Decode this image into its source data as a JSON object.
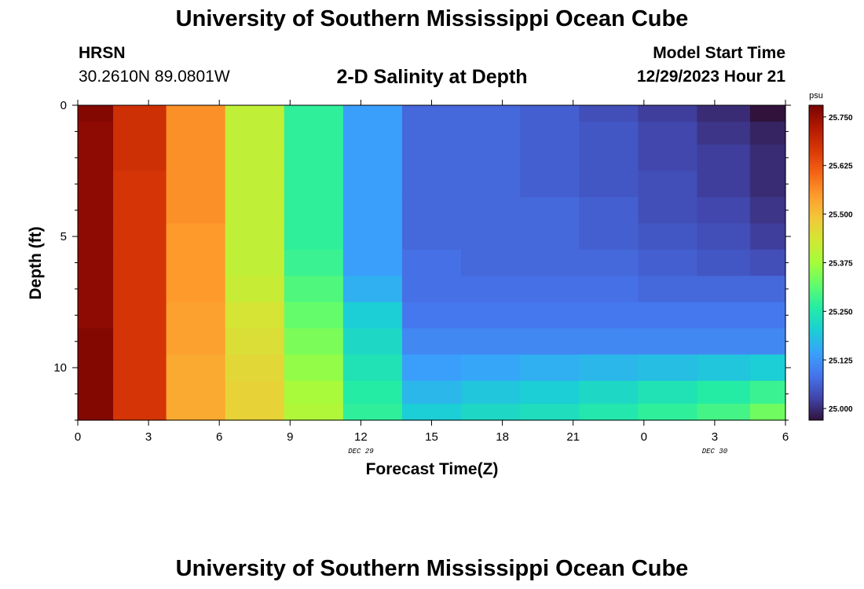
{
  "header": {
    "title": "University of Southern Mississippi Ocean Cube",
    "station": "HRSN",
    "coordinates": "30.2610N  89.0801W",
    "subtitle": "2-D Salinity at Depth",
    "model_start_label": "Model Start Time",
    "model_start_value": "12/29/2023 Hour 21"
  },
  "footer": {
    "title": "University of Southern Mississippi Ocean Cube"
  },
  "chart_data": {
    "type": "heatmap",
    "title": "2-D Salinity at Depth",
    "xlabel": "Forecast Time(Z)",
    "ylabel": "Depth (ft)",
    "x_ticks": [
      "0",
      "3",
      "6",
      "9",
      "12",
      "15",
      "18",
      "21",
      "0",
      "3",
      "6"
    ],
    "x_date_labels": [
      {
        "tick_index": 4,
        "text": "DEC 29"
      },
      {
        "tick_index": 9,
        "text": "DEC 30"
      }
    ],
    "y_ticks": [
      "0",
      "5",
      "10"
    ],
    "ylim": [
      12,
      0
    ],
    "xlim_hours": [
      0,
      30
    ],
    "colorbar": {
      "unit": "psu",
      "ticks": [
        "25.750",
        "25.625",
        "25.500",
        "25.375",
        "25.250",
        "25.125",
        "25.000"
      ],
      "range": [
        24.97,
        25.78
      ],
      "colors": [
        "#30123b",
        "#4145ab",
        "#4675ed",
        "#39a2fc",
        "#1bcfd4",
        "#24eca6",
        "#61fc6c",
        "#a4fc3b",
        "#d1e834",
        "#f3c63a",
        "#fe9b2d",
        "#f36315",
        "#d93806",
        "#b11901",
        "#7a0402"
      ]
    },
    "x_hours": [
      0.5,
      2.5,
      5.0,
      7.5,
      10.0,
      12.5,
      15.0,
      17.5,
      20.0,
      22.5,
      25.0,
      27.5,
      29.5
    ],
    "depth_rows": [
      0.25,
      1,
      2,
      3,
      4,
      5,
      6,
      7,
      8,
      9,
      10,
      11,
      11.75
    ],
    "salinity": [
      [
        25.77,
        25.68,
        25.56,
        25.41,
        25.27,
        25.14,
        25.07,
        25.07,
        25.06,
        25.04,
        25.02,
        25.0,
        24.97
      ],
      [
        25.76,
        25.68,
        25.56,
        25.41,
        25.27,
        25.14,
        25.07,
        25.07,
        25.06,
        25.05,
        25.03,
        25.01,
        24.99
      ],
      [
        25.76,
        25.68,
        25.56,
        25.41,
        25.27,
        25.14,
        25.07,
        25.07,
        25.06,
        25.05,
        25.03,
        25.02,
        25.0
      ],
      [
        25.76,
        25.67,
        25.56,
        25.41,
        25.27,
        25.14,
        25.07,
        25.07,
        25.06,
        25.05,
        25.04,
        25.02,
        25.0
      ],
      [
        25.76,
        25.67,
        25.56,
        25.41,
        25.27,
        25.14,
        25.07,
        25.07,
        25.07,
        25.06,
        25.04,
        25.03,
        25.01
      ],
      [
        25.76,
        25.67,
        25.55,
        25.41,
        25.27,
        25.14,
        25.07,
        25.07,
        25.07,
        25.06,
        25.05,
        25.04,
        25.02
      ],
      [
        25.76,
        25.67,
        25.55,
        25.41,
        25.28,
        25.14,
        25.08,
        25.07,
        25.07,
        25.07,
        25.06,
        25.05,
        25.04
      ],
      [
        25.76,
        25.67,
        25.55,
        25.42,
        25.3,
        25.16,
        25.08,
        25.08,
        25.08,
        25.08,
        25.07,
        25.07,
        25.07
      ],
      [
        25.76,
        25.67,
        25.54,
        25.44,
        25.32,
        25.2,
        25.09,
        25.09,
        25.09,
        25.09,
        25.09,
        25.09,
        25.09
      ],
      [
        25.77,
        25.67,
        25.54,
        25.45,
        25.34,
        25.22,
        25.11,
        25.11,
        25.11,
        25.11,
        25.11,
        25.11,
        25.11
      ],
      [
        25.77,
        25.67,
        25.53,
        25.46,
        25.36,
        25.24,
        25.14,
        25.15,
        25.16,
        25.17,
        25.18,
        25.19,
        25.2
      ],
      [
        25.77,
        25.67,
        25.53,
        25.47,
        25.38,
        25.26,
        25.17,
        25.19,
        25.2,
        25.22,
        25.24,
        25.26,
        25.28
      ],
      [
        25.77,
        25.67,
        25.53,
        25.47,
        25.39,
        25.27,
        25.2,
        25.22,
        25.23,
        25.25,
        25.27,
        25.29,
        25.33
      ]
    ],
    "grid": false,
    "legend": "colorbar-right"
  }
}
